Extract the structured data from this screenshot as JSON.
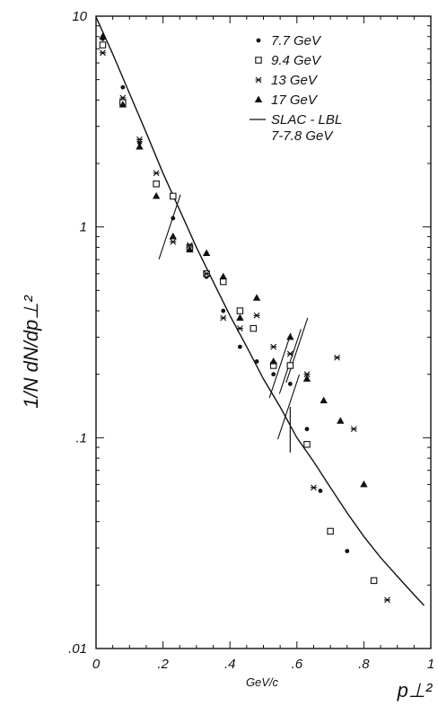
{
  "chart_data": {
    "type": "scatter",
    "title": "",
    "xlabel": "p⊥²",
    "xunit": "GeV/c",
    "ylabel": "1/N dN/dp⊥²",
    "y_scale": "log",
    "xlim": [
      0,
      1.0
    ],
    "ylim": [
      0.01,
      10
    ],
    "x_ticks": [
      {
        "v": 0,
        "label": "0"
      },
      {
        "v": 0.2,
        "label": ".2"
      },
      {
        "v": 0.4,
        "label": ".4"
      },
      {
        "v": 0.6,
        "label": ".6"
      },
      {
        "v": 0.8,
        "label": ".8"
      },
      {
        "v": 1.0,
        "label": "1"
      }
    ],
    "y_ticks": [
      {
        "v": 10,
        "label": "10"
      },
      {
        "v": 1,
        "label": "1"
      },
      {
        "v": 0.1,
        "label": ".1"
      },
      {
        "v": 0.01,
        "label": ".01"
      }
    ],
    "legend_position": "top-right",
    "series": [
      {
        "name": "7.7 GeV",
        "marker": "dot",
        "points": [
          [
            0.02,
            7.8
          ],
          [
            0.08,
            4.6
          ],
          [
            0.13,
            2.5
          ],
          [
            0.18,
            1.6
          ],
          [
            0.23,
            1.1
          ],
          [
            0.28,
            0.78
          ],
          [
            0.33,
            0.58
          ],
          [
            0.38,
            0.4
          ],
          [
            0.43,
            0.27
          ],
          [
            0.48,
            0.23
          ],
          [
            0.53,
            0.2
          ],
          [
            0.58,
            0.18
          ],
          [
            0.63,
            0.11
          ],
          [
            0.67,
            0.056
          ],
          [
            0.75,
            0.029
          ]
        ]
      },
      {
        "name": "9.4 GeV",
        "marker": "open-square",
        "points": [
          [
            0.02,
            7.3
          ],
          [
            0.08,
            3.9
          ],
          [
            0.18,
            1.6
          ],
          [
            0.23,
            1.4
          ],
          [
            0.28,
            0.8
          ],
          [
            0.33,
            0.6
          ],
          [
            0.38,
            0.55
          ],
          [
            0.43,
            0.4
          ],
          [
            0.47,
            0.33
          ],
          [
            0.53,
            0.22
          ],
          [
            0.58,
            0.22
          ],
          [
            0.63,
            0.093
          ],
          [
            0.7,
            0.036
          ],
          [
            0.83,
            0.021
          ]
        ]
      },
      {
        "name": "13 GeV",
        "marker": "star",
        "points": [
          [
            0.02,
            6.7
          ],
          [
            0.08,
            4.1
          ],
          [
            0.13,
            2.6
          ],
          [
            0.18,
            1.8
          ],
          [
            0.23,
            0.85
          ],
          [
            0.28,
            0.82
          ],
          [
            0.33,
            0.6
          ],
          [
            0.38,
            0.37
          ],
          [
            0.43,
            0.33
          ],
          [
            0.48,
            0.38
          ],
          [
            0.53,
            0.27
          ],
          [
            0.58,
            0.25
          ],
          [
            0.63,
            0.2
          ],
          [
            0.65,
            0.058
          ],
          [
            0.72,
            0.24
          ],
          [
            0.77,
            0.11
          ],
          [
            0.87,
            0.017
          ]
        ]
      },
      {
        "name": "17 GeV",
        "marker": "filled-triangle",
        "points": [
          [
            0.02,
            8.0
          ],
          [
            0.08,
            3.8
          ],
          [
            0.13,
            2.4
          ],
          [
            0.18,
            1.4
          ],
          [
            0.23,
            0.9
          ],
          [
            0.28,
            0.78
          ],
          [
            0.33,
            0.75
          ],
          [
            0.38,
            0.58
          ],
          [
            0.43,
            0.37
          ],
          [
            0.48,
            0.46
          ],
          [
            0.53,
            0.23
          ],
          [
            0.58,
            0.3
          ],
          [
            0.63,
            0.19
          ],
          [
            0.68,
            0.15
          ],
          [
            0.73,
            0.12
          ],
          [
            0.8,
            0.06
          ]
        ]
      }
    ],
    "curve": {
      "name": "SLAC - LBL",
      "name_line2": "7-7.8 GeV",
      "points": [
        [
          0.0,
          9.9
        ],
        [
          0.05,
          6.6
        ],
        [
          0.1,
          4.3
        ],
        [
          0.15,
          2.8
        ],
        [
          0.2,
          1.8
        ],
        [
          0.25,
          1.2
        ],
        [
          0.3,
          0.8
        ],
        [
          0.35,
          0.55
        ],
        [
          0.4,
          0.38
        ],
        [
          0.45,
          0.27
        ],
        [
          0.5,
          0.19
        ],
        [
          0.55,
          0.14
        ],
        [
          0.6,
          0.1
        ],
        [
          0.65,
          0.077
        ],
        [
          0.7,
          0.058
        ],
        [
          0.75,
          0.044
        ],
        [
          0.8,
          0.034
        ],
        [
          0.85,
          0.027
        ],
        [
          0.9,
          0.022
        ],
        [
          0.95,
          0.018
        ],
        [
          0.98,
          0.016
        ]
      ]
    },
    "slope_ticks": [
      {
        "x": 0.22,
        "y": 1.0
      },
      {
        "x": 0.55,
        "y": 0.22
      },
      {
        "x": 0.58,
        "y": 0.23
      },
      {
        "x": 0.6,
        "y": 0.26
      },
      {
        "x": 0.575,
        "y": 0.14
      }
    ],
    "error_bars": [
      {
        "x": 0.58,
        "y": 0.11,
        "lo": 0.085,
        "hi": 0.14
      }
    ]
  }
}
